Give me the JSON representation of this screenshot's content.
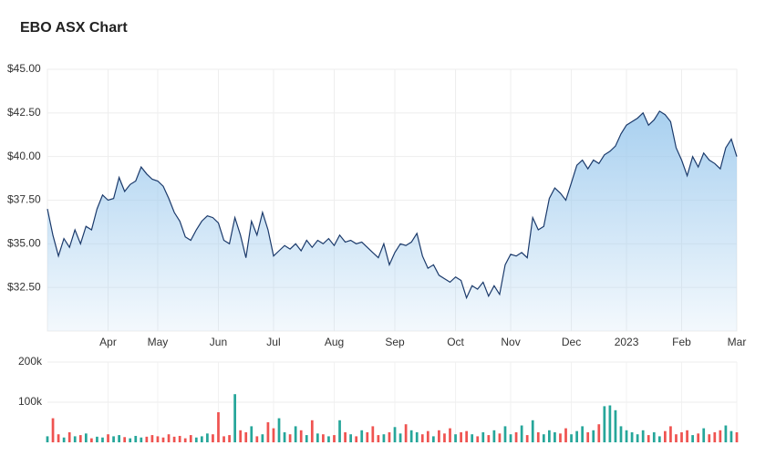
{
  "chart_data": [
    {
      "type": "area",
      "title": "EBO ASX Chart",
      "color": "#1b3a6b",
      "fill": "#9fcbee",
      "xlim": [
        0,
        125
      ],
      "ylim": [
        30,
        45
      ],
      "grid": true,
      "yticks": [
        {
          "value": 32.5,
          "label": "$32.50"
        },
        {
          "value": 35,
          "label": "$35.00"
        },
        {
          "value": 37.5,
          "label": "$37.50"
        },
        {
          "value": 40,
          "label": "$40.00"
        },
        {
          "value": 42.5,
          "label": "$42.50"
        },
        {
          "value": 45,
          "label": "$45.00"
        }
      ],
      "xticks": [
        {
          "value": 11,
          "label": "Apr"
        },
        {
          "value": 20,
          "label": "May"
        },
        {
          "value": 31,
          "label": "Jun"
        },
        {
          "value": 41,
          "label": "Jul"
        },
        {
          "value": 52,
          "label": "Aug"
        },
        {
          "value": 63,
          "label": "Sep"
        },
        {
          "value": 74,
          "label": "Oct"
        },
        {
          "value": 84,
          "label": "Nov"
        },
        {
          "value": 95,
          "label": "Dec"
        },
        {
          "value": 105,
          "label": "2023"
        },
        {
          "value": 115,
          "label": "Feb"
        },
        {
          "value": 125,
          "label": "Mar"
        }
      ],
      "values": [
        37.0,
        35.5,
        34.3,
        35.3,
        34.8,
        35.8,
        35.0,
        36.0,
        35.8,
        37.0,
        37.8,
        37.5,
        37.6,
        38.8,
        38.0,
        38.4,
        38.6,
        39.4,
        39.0,
        38.7,
        38.6,
        38.3,
        37.6,
        36.8,
        36.3,
        35.4,
        35.2,
        35.8,
        36.3,
        36.6,
        36.5,
        36.2,
        35.2,
        35.0,
        36.5,
        35.5,
        34.2,
        36.3,
        35.5,
        36.8,
        35.8,
        34.3,
        34.6,
        34.9,
        34.7,
        35.0,
        34.6,
        35.2,
        34.8,
        35.2,
        35.0,
        35.3,
        34.9,
        35.5,
        35.1,
        35.2,
        35.0,
        35.1,
        34.8,
        34.5,
        34.2,
        35.0,
        33.8,
        34.5,
        35.0,
        34.9,
        35.1,
        35.6,
        34.3,
        33.6,
        33.8,
        33.2,
        33.0,
        32.8,
        33.1,
        32.9,
        31.9,
        32.6,
        32.4,
        32.8,
        32.0,
        32.6,
        32.1,
        33.8,
        34.4,
        34.3,
        34.5,
        34.2,
        36.5,
        35.8,
        36.0,
        37.6,
        38.2,
        37.9,
        37.5,
        38.5,
        39.5,
        39.8,
        39.3,
        39.8,
        39.6,
        40.1,
        40.3,
        40.6,
        41.3,
        41.8,
        42.0,
        42.2,
        42.5,
        41.8,
        42.1,
        42.6,
        42.4,
        42.0,
        40.5,
        39.8,
        38.9,
        40.0,
        39.4,
        40.2,
        39.8,
        39.6,
        39.3,
        40.5,
        41.0,
        40.0
      ]
    },
    {
      "type": "bar",
      "xlim": [
        0,
        125
      ],
      "ylim": [
        0,
        200000
      ],
      "grid": true,
      "up_color": "#26a69a",
      "down_color": "#ef5350",
      "yticks": [
        {
          "value": 100000,
          "label": "100k"
        },
        {
          "value": 200000,
          "label": "200k"
        }
      ],
      "values": [
        15000,
        60000,
        20000,
        12000,
        25000,
        15000,
        18000,
        22000,
        10000,
        14000,
        12000,
        20000,
        15000,
        18000,
        13000,
        10000,
        16000,
        12000,
        14000,
        18000,
        15000,
        12000,
        20000,
        14000,
        16000,
        10000,
        18000,
        12000,
        15000,
        22000,
        20000,
        75000,
        15000,
        18000,
        120000,
        30000,
        25000,
        40000,
        15000,
        20000,
        50000,
        35000,
        60000,
        25000,
        20000,
        40000,
        30000,
        18000,
        55000,
        22000,
        20000,
        15000,
        18000,
        55000,
        25000,
        20000,
        15000,
        30000,
        25000,
        40000,
        18000,
        20000,
        25000,
        38000,
        22000,
        45000,
        30000,
        25000,
        20000,
        28000,
        15000,
        30000,
        22000,
        35000,
        20000,
        25000,
        28000,
        20000,
        15000,
        25000,
        18000,
        30000,
        22000,
        40000,
        20000,
        25000,
        42000,
        18000,
        55000,
        25000,
        20000,
        30000,
        25000,
        22000,
        35000,
        20000,
        28000,
        40000,
        25000,
        30000,
        45000,
        90000,
        92000,
        80000,
        40000,
        30000,
        25000,
        20000,
        30000,
        18000,
        25000,
        15000,
        28000,
        40000,
        20000,
        25000,
        30000,
        18000,
        22000,
        35000,
        20000,
        25000,
        30000,
        42000,
        28000,
        25000
      ]
    }
  ]
}
